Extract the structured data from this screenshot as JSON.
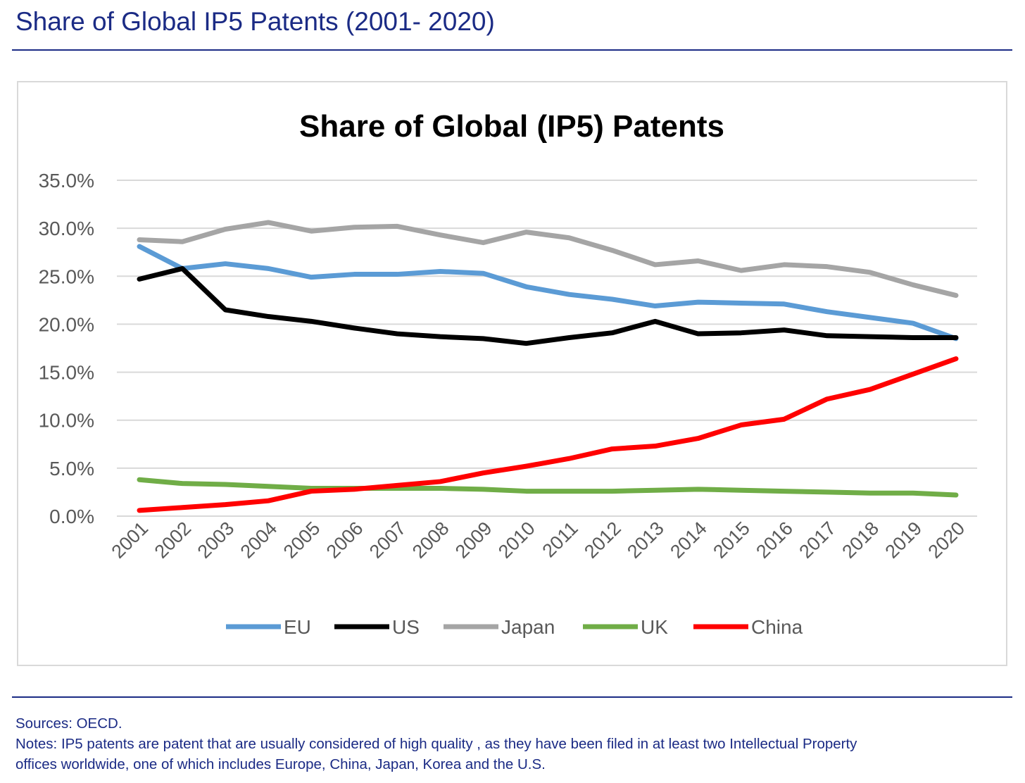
{
  "page": {
    "title": "Share of Global IP5 Patents (2001- 2020)",
    "sources": "Sources: OECD.",
    "notes_line1": "Notes: IP5 patents are patent that are usually considered of high quality , as they have been filed in at least two Intellectual Property",
    "notes_line2": "offices worldwide, one of which includes Europe, China, Japan, Korea and the U.S."
  },
  "chart_data": {
    "type": "line",
    "title": "Share of Global (IP5) Patents",
    "xlabel": "",
    "ylabel": "",
    "ylim": [
      0,
      35
    ],
    "yticks": [
      0,
      5,
      10,
      15,
      20,
      25,
      30,
      35
    ],
    "ytick_labels": [
      "0.0%",
      "5.0%",
      "10.0%",
      "15.0%",
      "20.0%",
      "25.0%",
      "30.0%",
      "35.0%"
    ],
    "grid": true,
    "legend_position": "bottom",
    "x": [
      "2001",
      "2002",
      "2003",
      "2004",
      "2005",
      "2006",
      "2007",
      "2008",
      "2009",
      "2010",
      "2011",
      "2012",
      "2013",
      "2014",
      "2015",
      "2016",
      "2017",
      "2018",
      "2019",
      "2020"
    ],
    "series": [
      {
        "name": "EU",
        "color": "#5b9bd5",
        "values": [
          28.1,
          25.8,
          26.3,
          25.8,
          24.9,
          25.2,
          25.2,
          25.5,
          25.3,
          23.9,
          23.1,
          22.6,
          21.9,
          22.3,
          22.2,
          22.1,
          21.3,
          20.7,
          20.1,
          18.5
        ]
      },
      {
        "name": "US",
        "color": "#000000",
        "values": [
          24.7,
          25.8,
          21.5,
          20.8,
          20.3,
          19.6,
          19.0,
          18.7,
          18.5,
          18.0,
          18.6,
          19.1,
          20.3,
          19.0,
          19.1,
          19.4,
          18.8,
          18.7,
          18.6,
          18.6
        ]
      },
      {
        "name": "Japan",
        "color": "#a5a5a5",
        "values": [
          28.8,
          28.6,
          29.9,
          30.6,
          29.7,
          30.1,
          30.2,
          29.3,
          28.5,
          29.6,
          29.0,
          27.7,
          26.2,
          26.6,
          25.6,
          26.2,
          26.0,
          25.4,
          24.1,
          23.0
        ]
      },
      {
        "name": "UK",
        "color": "#70ad47",
        "values": [
          3.8,
          3.4,
          3.3,
          3.1,
          2.9,
          2.9,
          2.9,
          2.9,
          2.8,
          2.6,
          2.6,
          2.6,
          2.7,
          2.8,
          2.7,
          2.6,
          2.5,
          2.4,
          2.4,
          2.2
        ]
      },
      {
        "name": "China",
        "color": "#ff0000",
        "values": [
          0.6,
          0.9,
          1.2,
          1.6,
          2.6,
          2.8,
          3.2,
          3.6,
          4.5,
          5.2,
          6.0,
          7.0,
          7.3,
          8.1,
          9.5,
          10.1,
          12.2,
          13.2,
          14.8,
          16.4
        ]
      }
    ]
  }
}
